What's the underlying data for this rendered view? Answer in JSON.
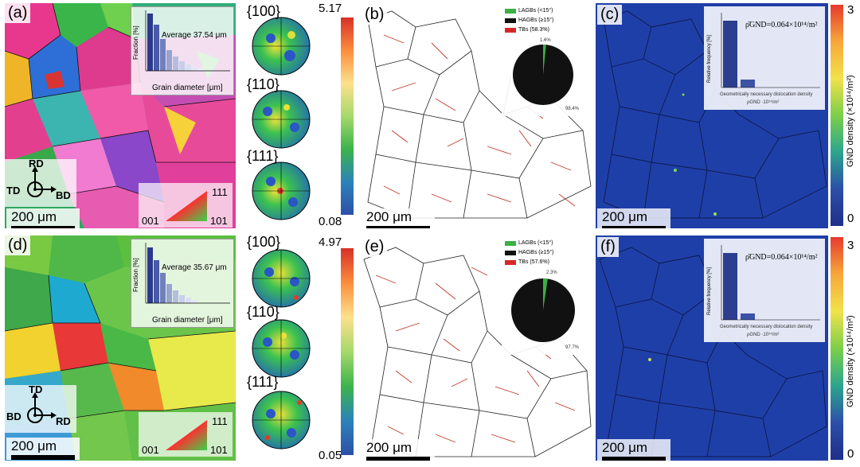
{
  "rows": [
    {
      "ipf_tag": "(a)",
      "ipf_avg": "Average  37.54 μm",
      "ipf_scale": "200 μm",
      "axes": {
        "top": "RD",
        "left": "TD",
        "right": "BD"
      },
      "triangle": {
        "a": "001",
        "b": "101",
        "c": "111"
      },
      "hist_ylabel": "Fraction [%]",
      "hist_xlabel": "Grain diameter [μm]",
      "pf_labels": [
        "{100}",
        "{110}",
        "{111}"
      ],
      "pf_max": "5.17",
      "pf_min": "0.08",
      "gb_tag": "(b)",
      "gb_scale": "200 μm",
      "gb_legend": [
        "LAGBs (<15°)",
        "HAGBs (≥15°)",
        "TBs (58.3%)"
      ],
      "gb_pie_small": "1.6%",
      "gb_pie_large": "98.4%",
      "gnd_tag": "(c)",
      "gnd_scale": "200 μm",
      "gnd_formula": "ρ̄GND=0.064×10¹⁴/m²",
      "gnd_inset_ylabel": "Relative frequency [%]",
      "gnd_inset_xlabel": "Geometrically necessary dislocation density",
      "gnd_inset_unit": "ρGND ·10¹⁴/m²",
      "gnd_cbar_label": "GND density (×10¹⁴/m²)",
      "gnd_max": "3",
      "gnd_min": "0"
    },
    {
      "ipf_tag": "(d)",
      "ipf_avg": "Average  35.67 μm",
      "ipf_scale": "200 μm",
      "axes": {
        "top": "TD",
        "left": "BD",
        "right": "RD"
      },
      "triangle": {
        "a": "001",
        "b": "101",
        "c": "111"
      },
      "hist_ylabel": "Fraction [%]",
      "hist_xlabel": "Grain diameter [μm]",
      "pf_labels": [
        "{100}",
        "{110}",
        "{111}"
      ],
      "pf_max": "4.97",
      "pf_min": "0.05",
      "gb_tag": "(e)",
      "gb_scale": "200 μm",
      "gb_legend": [
        "LAGBs (<15°)",
        "HAGBs (≥15°)",
        "TBs (57.6%)"
      ],
      "gb_pie_small": "2.3%",
      "gb_pie_large": "97.7%",
      "gnd_tag": "(f)",
      "gnd_scale": "200 μm",
      "gnd_formula": "ρ̄GND=0.064×10¹⁴/m²",
      "gnd_inset_ylabel": "Relative frequency [%]",
      "gnd_inset_xlabel": "Geometrically necessary dislocation density",
      "gnd_inset_unit": "ρGND ·10¹⁴/m²",
      "gnd_cbar_label": "GND density (×10¹⁴/m²)",
      "gnd_max": "3",
      "gnd_min": "0"
    }
  ],
  "colors": {
    "lagb": "#3cb043",
    "hagb": "#111111",
    "tb": "#d62828",
    "gnd_bg": "#1f3fa8"
  }
}
